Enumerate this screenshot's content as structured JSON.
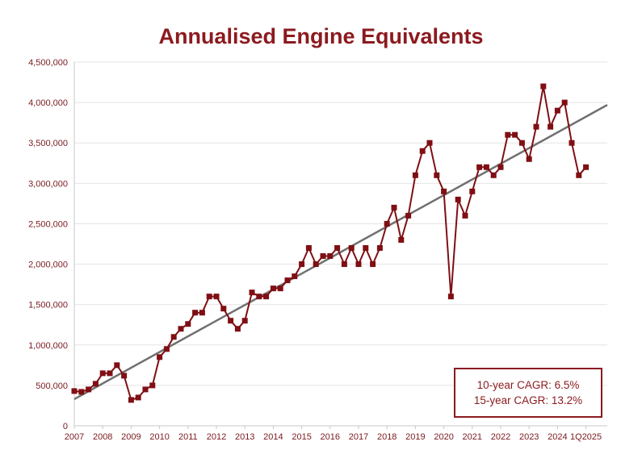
{
  "chart_data": {
    "type": "line",
    "title": "Annualised Engine Equivalents",
    "xlabel": "",
    "ylabel": "",
    "ylim": [
      0,
      4500000
    ],
    "yticks": [
      0,
      500000,
      1000000,
      1500000,
      2000000,
      2500000,
      3000000,
      3500000,
      4000000,
      4500000
    ],
    "ytick_labels": [
      "0",
      "500,000",
      "1,000,000",
      "1,500,000",
      "2,000,000",
      "2,500,000",
      "3,000,000",
      "3,500,000",
      "4,000,000",
      "4,500,000"
    ],
    "xlim": [
      2007.0,
      2025.75
    ],
    "xticks": [
      2007,
      2008,
      2009,
      2010,
      2011,
      2012,
      2013,
      2014,
      2015,
      2016,
      2017,
      2018,
      2019,
      2020,
      2021,
      2022,
      2023,
      2024,
      2025
    ],
    "xtick_labels": [
      "2007",
      "2008",
      "2009",
      "2010",
      "2011",
      "2012",
      "2013",
      "2014",
      "2015",
      "2016",
      "2017",
      "2018",
      "2019",
      "2020",
      "2021",
      "2022",
      "2023",
      "2024",
      "1Q2025"
    ],
    "grid": "horizontal",
    "series": [
      {
        "color": "#7f0f14",
        "x": [
          2007.0,
          2007.25,
          2007.5,
          2007.75,
          2008.0,
          2008.25,
          2008.5,
          2008.75,
          2009.0,
          2009.25,
          2009.5,
          2009.75,
          2010.0,
          2010.25,
          2010.5,
          2010.75,
          2011.0,
          2011.25,
          2011.5,
          2011.75,
          2012.0,
          2012.25,
          2012.5,
          2012.75,
          2013.0,
          2013.25,
          2013.5,
          2013.75,
          2014.0,
          2014.25,
          2014.5,
          2014.75,
          2015.0,
          2015.25,
          2015.5,
          2015.75,
          2016.0,
          2016.25,
          2016.5,
          2016.75,
          2017.0,
          2017.25,
          2017.5,
          2017.75,
          2018.0,
          2018.25,
          2018.5,
          2018.75,
          2019.0,
          2019.25,
          2019.5,
          2019.75,
          2020.0,
          2020.25,
          2020.5,
          2020.75,
          2021.0,
          2021.25,
          2021.5,
          2021.75,
          2022.0,
          2022.25,
          2022.5,
          2022.75,
          2023.0,
          2023.25,
          2023.5,
          2023.75,
          2024.0,
          2024.25,
          2024.5,
          2024.75,
          2025.0
        ],
        "values": [
          430000,
          420000,
          450000,
          520000,
          650000,
          650000,
          750000,
          620000,
          320000,
          350000,
          450000,
          500000,
          850000,
          950000,
          1100000,
          1200000,
          1260000,
          1400000,
          1400000,
          1600000,
          1600000,
          1450000,
          1300000,
          1200000,
          1300000,
          1650000,
          1600000,
          1600000,
          1700000,
          1700000,
          1800000,
          1850000,
          2000000,
          2200000,
          2000000,
          2100000,
          2100000,
          2200000,
          2000000,
          2200000,
          2000000,
          2200000,
          2000000,
          2200000,
          2500000,
          2700000,
          2300000,
          2600000,
          3100000,
          3400000,
          3500000,
          3100000,
          2900000,
          1600000,
          2800000,
          2600000,
          2900000,
          3200000,
          3200000,
          3100000,
          3200000,
          3600000,
          3600000,
          3500000,
          3300000,
          3700000,
          4200000,
          3700000,
          3900000,
          4000000,
          3500000,
          3100000,
          3200000
        ]
      },
      {
        "type": "trendline",
        "color": "#707070",
        "x": [
          2007.0,
          2025.75
        ],
        "values": [
          330000,
          3970000
        ]
      }
    ],
    "annotations": [
      "10-year CAGR: 6.5%",
      "15-year CAGR: 13.2%"
    ]
  },
  "colors": {
    "title": "#8b1a1f",
    "series": "#7f0f14",
    "trend": "#707070",
    "axis_text": "#7a1a1f",
    "grid": "#e4e4e4"
  }
}
